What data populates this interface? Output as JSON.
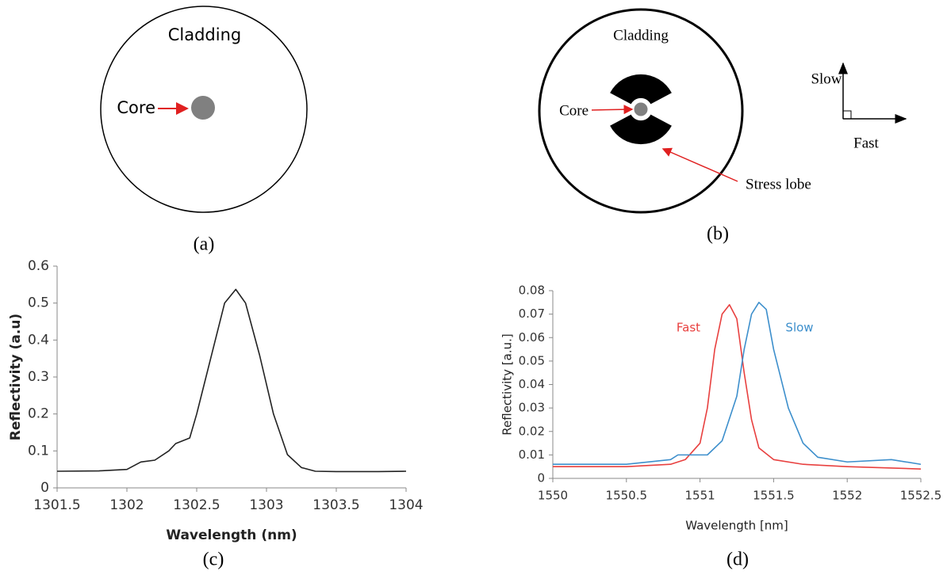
{
  "diagrams": {
    "a": {
      "cladding": "Cladding",
      "core": "Core",
      "caption": "(a)"
    },
    "b": {
      "cladding": "Cladding",
      "core": "Core",
      "stress_lobe": "Stress lobe",
      "slow": "Slow",
      "fast": "Fast",
      "caption": "(b)"
    }
  },
  "chart_data": [
    {
      "type": "line",
      "caption": "(c)",
      "x_label": "Wavelength (nm)",
      "y_label": "Reflectivity (a.u)",
      "color": "#222222",
      "x": [
        1301.5,
        1301.8,
        1302.0,
        1302.1,
        1302.2,
        1302.3,
        1302.35,
        1302.45,
        1302.5,
        1302.6,
        1302.7,
        1302.78,
        1302.85,
        1302.95,
        1303.05,
        1303.15,
        1303.25,
        1303.35,
        1303.5,
        1303.8,
        1304.0
      ],
      "values": [
        0.045,
        0.046,
        0.05,
        0.07,
        0.075,
        0.1,
        0.12,
        0.135,
        0.2,
        0.35,
        0.5,
        0.537,
        0.5,
        0.36,
        0.2,
        0.09,
        0.055,
        0.045,
        0.044,
        0.044,
        0.045
      ],
      "xlim": [
        1301.5,
        1304
      ],
      "ylim": [
        0,
        0.6
      ],
      "xticks": [
        1301.5,
        1302,
        1302.5,
        1303,
        1303.5,
        1304
      ],
      "yticks": [
        0,
        0.1,
        0.2,
        0.3,
        0.4,
        0.5,
        0.6
      ]
    },
    {
      "type": "line",
      "caption": "(d)",
      "x_label": "Wavelength [nm]",
      "y_label": "Reflectivity [a.u.]",
      "series": [
        {
          "name": "Fast",
          "color": "#e8403f",
          "x": [
            1550.0,
            1550.5,
            1550.8,
            1550.9,
            1551.0,
            1551.05,
            1551.1,
            1551.15,
            1551.2,
            1551.25,
            1551.3,
            1551.35,
            1551.4,
            1551.5,
            1551.7,
            1552.0,
            1552.5
          ],
          "values": [
            0.005,
            0.005,
            0.006,
            0.008,
            0.015,
            0.03,
            0.055,
            0.07,
            0.074,
            0.068,
            0.045,
            0.025,
            0.013,
            0.008,
            0.006,
            0.005,
            0.004
          ]
        },
        {
          "name": "Slow",
          "color": "#3d8fcc",
          "x": [
            1550.0,
            1550.5,
            1550.8,
            1550.85,
            1550.95,
            1551.05,
            1551.15,
            1551.25,
            1551.3,
            1551.35,
            1551.4,
            1551.45,
            1551.5,
            1551.6,
            1551.7,
            1551.8,
            1552.0,
            1552.3,
            1552.5
          ],
          "values": [
            0.006,
            0.006,
            0.008,
            0.01,
            0.01,
            0.01,
            0.016,
            0.035,
            0.055,
            0.07,
            0.075,
            0.072,
            0.055,
            0.03,
            0.015,
            0.009,
            0.007,
            0.008,
            0.006
          ]
        }
      ],
      "xlim": [
        1550,
        1552.5
      ],
      "ylim": [
        0,
        0.08
      ],
      "xticks": [
        1550,
        1550.5,
        1551,
        1551.5,
        1552,
        1552.5
      ],
      "yticks": [
        0,
        0.01,
        0.02,
        0.03,
        0.04,
        0.05,
        0.06,
        0.07,
        0.08
      ]
    }
  ]
}
